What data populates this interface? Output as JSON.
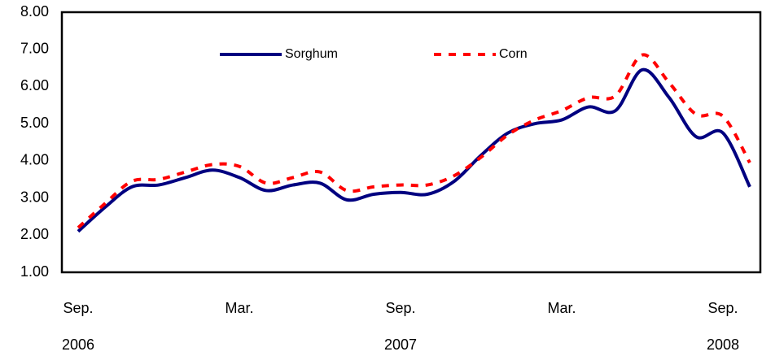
{
  "chart_data": {
    "type": "line",
    "categories": [
      "Sep.",
      null,
      null,
      null,
      null,
      null,
      "Mar.",
      null,
      null,
      null,
      null,
      null,
      "Sep.",
      null,
      null,
      null,
      null,
      null,
      "Mar.",
      null,
      null,
      null,
      null,
      null,
      "Sep.",
      null
    ],
    "category_years": [
      "2006",
      null,
      null,
      null,
      null,
      null,
      null,
      null,
      null,
      null,
      null,
      null,
      "2007",
      null,
      null,
      null,
      null,
      null,
      null,
      null,
      null,
      null,
      null,
      null,
      "2008",
      null
    ],
    "series": [
      {
        "name": "Sorghum",
        "color": "#000080",
        "dash": "solid",
        "values": [
          2.1,
          2.75,
          3.3,
          3.35,
          3.55,
          3.75,
          3.55,
          3.2,
          3.35,
          3.4,
          2.95,
          3.1,
          3.15,
          3.1,
          3.45,
          4.15,
          4.75,
          5.0,
          5.1,
          5.45,
          5.35,
          6.45,
          5.7,
          4.65,
          4.75,
          3.3
        ]
      },
      {
        "name": "Corn",
        "color": "#ff0000",
        "dash": "dashed",
        "values": [
          2.2,
          2.85,
          3.45,
          3.5,
          3.7,
          3.9,
          3.85,
          3.4,
          3.55,
          3.7,
          3.2,
          3.3,
          3.35,
          3.35,
          3.6,
          4.1,
          4.7,
          5.1,
          5.35,
          5.7,
          5.75,
          6.85,
          6.1,
          5.25,
          5.2,
          3.95
        ]
      }
    ],
    "ylim": [
      1,
      8
    ],
    "yticks": [
      {
        "value": 1,
        "label": "1.00"
      },
      {
        "value": 2,
        "label": "2.00"
      },
      {
        "value": 3,
        "label": "3.00"
      },
      {
        "value": 4,
        "label": "4.00"
      },
      {
        "value": 5,
        "label": "5.00"
      },
      {
        "value": 6,
        "label": "6.00"
      },
      {
        "value": 7,
        "label": "7.00"
      },
      {
        "value": 8,
        "label": "8.00"
      }
    ],
    "grid": false,
    "legend": "top"
  }
}
